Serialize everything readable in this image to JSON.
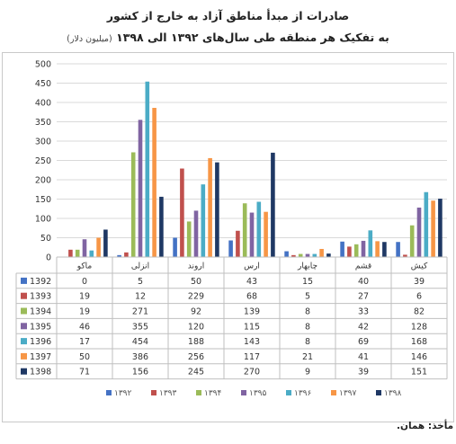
{
  "title": "صادرات از مبدأ مناطق آزاد به خارج از کشور",
  "subtitle": "به تفکیک هر منطقه طی سال‌های ۱۳۹۲ الی ۱۳۹۸",
  "unit_note": "(میلیون دلار)",
  "source": "مأخذ: همان.",
  "chart_data": {
    "type": "bar",
    "categories": [
      "کیش",
      "قشم",
      "چابهار",
      "ارس",
      "اروند",
      "انزلی",
      "ماکو"
    ],
    "ylim": [
      0,
      500
    ],
    "yticks": [
      0,
      50,
      100,
      150,
      200,
      250,
      300,
      350,
      400,
      450,
      500
    ],
    "grid": true,
    "legend_position": "bottom",
    "series": [
      {
        "name": "1392",
        "legend_label": "۱۳۹۲",
        "color": "#4472c4",
        "values": [
          39,
          40,
          15,
          43,
          50,
          5,
          0
        ]
      },
      {
        "name": "1393",
        "legend_label": "۱۳۹۳",
        "color": "#c0504d",
        "values": [
          6,
          27,
          5,
          68,
          229,
          12,
          19
        ]
      },
      {
        "name": "1394",
        "legend_label": "۱۳۹۴",
        "color": "#9bbb59",
        "values": [
          82,
          33,
          8,
          139,
          92,
          271,
          19
        ]
      },
      {
        "name": "1395",
        "legend_label": "۱۳۹۵",
        "color": "#8064a2",
        "values": [
          128,
          42,
          8,
          115,
          120,
          355,
          46
        ]
      },
      {
        "name": "1396",
        "legend_label": "۱۳۹۶",
        "color": "#4bacc6",
        "values": [
          168,
          69,
          8,
          143,
          188,
          454,
          17
        ]
      },
      {
        "name": "1397",
        "legend_label": "۱۳۹۷",
        "color": "#f79646",
        "values": [
          146,
          41,
          21,
          117,
          256,
          386,
          50
        ]
      },
      {
        "name": "1398",
        "legend_label": "۱۳۹۸",
        "color": "#1f3864",
        "values": [
          151,
          39,
          9,
          270,
          245,
          156,
          71
        ]
      }
    ]
  }
}
